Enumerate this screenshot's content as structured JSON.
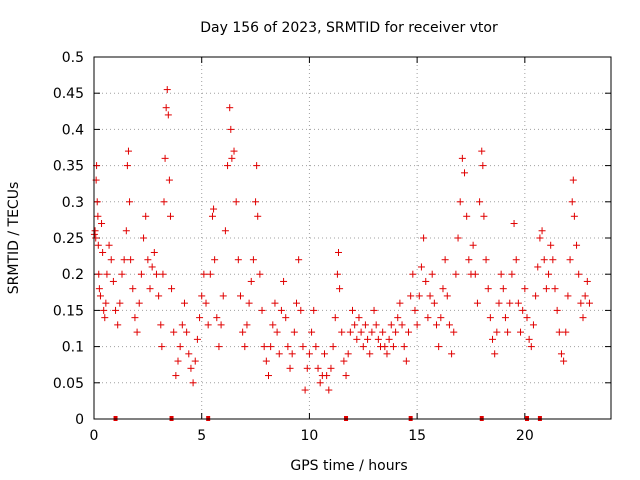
{
  "chart_data": {
    "type": "scatter",
    "title": "Day 156 of 2023, SRMTID for receiver vtor",
    "xlabel": "GPS time / hours",
    "ylabel": "SRMTID / TECUs",
    "xlim": [
      0,
      24
    ],
    "ylim": [
      0,
      0.5
    ],
    "x_ticks": [
      0,
      5,
      10,
      15,
      20
    ],
    "x_tick_labels": [
      "0",
      "5",
      "10",
      "15",
      "20"
    ],
    "y_ticks": [
      0,
      0.05,
      0.1,
      0.15,
      0.2,
      0.25,
      0.3,
      0.35,
      0.4,
      0.45,
      0.5
    ],
    "y_tick_labels": [
      "0",
      "0.05",
      "0.1",
      "0.15",
      "0.2",
      "0.25",
      "0.3",
      "0.35",
      "0.4",
      "0.45",
      "0.5"
    ],
    "grid": true,
    "marker": "+",
    "color": "#e00000",
    "series": [
      {
        "name": "SRMTID",
        "points": [
          [
            0.02,
            0.255
          ],
          [
            0.05,
            0.26
          ],
          [
            0.08,
            0.25
          ],
          [
            0.1,
            0.33
          ],
          [
            0.12,
            0.35
          ],
          [
            0.15,
            0.3
          ],
          [
            0.18,
            0.28
          ],
          [
            0.2,
            0.24
          ],
          [
            0.22,
            0.2
          ],
          [
            0.25,
            0.18
          ],
          [
            0.3,
            0.17
          ],
          [
            0.35,
            0.27
          ],
          [
            0.4,
            0.23
          ],
          [
            0.45,
            0.15
          ],
          [
            0.5,
            0.14
          ],
          [
            0.55,
            0.16
          ],
          [
            0.6,
            0.2
          ],
          [
            0.7,
            0.24
          ],
          [
            0.8,
            0.22
          ],
          [
            0.9,
            0.19
          ],
          [
            1.0,
            0.15
          ],
          [
            1.1,
            0.13
          ],
          [
            1.2,
            0.16
          ],
          [
            1.3,
            0.2
          ],
          [
            1.4,
            0.22
          ],
          [
            1.5,
            0.26
          ],
          [
            1.55,
            0.35
          ],
          [
            1.6,
            0.37
          ],
          [
            1.65,
            0.3
          ],
          [
            1.7,
            0.22
          ],
          [
            1.8,
            0.18
          ],
          [
            1.9,
            0.14
          ],
          [
            2.0,
            0.12
          ],
          [
            2.1,
            0.16
          ],
          [
            2.2,
            0.2
          ],
          [
            2.3,
            0.25
          ],
          [
            2.4,
            0.28
          ],
          [
            2.5,
            0.22
          ],
          [
            2.6,
            0.18
          ],
          [
            2.7,
            0.21
          ],
          [
            2.8,
            0.23
          ],
          [
            2.9,
            0.2
          ],
          [
            3.0,
            0.17
          ],
          [
            3.1,
            0.13
          ],
          [
            3.15,
            0.1
          ],
          [
            3.2,
            0.2
          ],
          [
            3.25,
            0.3
          ],
          [
            3.3,
            0.36
          ],
          [
            3.35,
            0.43
          ],
          [
            3.4,
            0.455
          ],
          [
            3.45,
            0.42
          ],
          [
            3.5,
            0.33
          ],
          [
            3.55,
            0.28
          ],
          [
            3.6,
            0.18
          ],
          [
            3.7,
            0.12
          ],
          [
            3.8,
            0.06
          ],
          [
            3.9,
            0.08
          ],
          [
            4.0,
            0.1
          ],
          [
            4.1,
            0.13
          ],
          [
            4.2,
            0.16
          ],
          [
            4.3,
            0.12
          ],
          [
            4.4,
            0.09
          ],
          [
            4.5,
            0.07
          ],
          [
            4.6,
            0.05
          ],
          [
            4.7,
            0.08
          ],
          [
            4.8,
            0.11
          ],
          [
            4.9,
            0.14
          ],
          [
            5.0,
            0.17
          ],
          [
            5.1,
            0.2
          ],
          [
            5.2,
            0.16
          ],
          [
            5.3,
            0.13
          ],
          [
            5.4,
            0.2
          ],
          [
            5.5,
            0.28
          ],
          [
            5.55,
            0.29
          ],
          [
            5.6,
            0.22
          ],
          [
            5.7,
            0.14
          ],
          [
            5.8,
            0.1
          ],
          [
            5.9,
            0.13
          ],
          [
            6.0,
            0.17
          ],
          [
            6.1,
            0.26
          ],
          [
            6.2,
            0.35
          ],
          [
            6.3,
            0.43
          ],
          [
            6.35,
            0.4
          ],
          [
            6.4,
            0.36
          ],
          [
            6.5,
            0.37
          ],
          [
            6.6,
            0.3
          ],
          [
            6.7,
            0.22
          ],
          [
            6.8,
            0.17
          ],
          [
            6.9,
            0.12
          ],
          [
            7.0,
            0.1
          ],
          [
            7.1,
            0.13
          ],
          [
            7.2,
            0.16
          ],
          [
            7.3,
            0.19
          ],
          [
            7.4,
            0.22
          ],
          [
            7.5,
            0.3
          ],
          [
            7.55,
            0.35
          ],
          [
            7.6,
            0.28
          ],
          [
            7.7,
            0.2
          ],
          [
            7.8,
            0.15
          ],
          [
            7.9,
            0.1
          ],
          [
            8.0,
            0.08
          ],
          [
            8.1,
            0.06
          ],
          [
            8.2,
            0.1
          ],
          [
            8.3,
            0.13
          ],
          [
            8.4,
            0.16
          ],
          [
            8.5,
            0.12
          ],
          [
            8.6,
            0.09
          ],
          [
            8.7,
            0.15
          ],
          [
            8.8,
            0.19
          ],
          [
            8.9,
            0.14
          ],
          [
            9.0,
            0.1
          ],
          [
            9.1,
            0.07
          ],
          [
            9.2,
            0.09
          ],
          [
            9.3,
            0.12
          ],
          [
            9.4,
            0.16
          ],
          [
            9.5,
            0.22
          ],
          [
            9.6,
            0.15
          ],
          [
            9.7,
            0.1
          ],
          [
            9.8,
            0.04
          ],
          [
            9.9,
            0.07
          ],
          [
            10.0,
            0.09
          ],
          [
            10.1,
            0.12
          ],
          [
            10.2,
            0.15
          ],
          [
            10.3,
            0.1
          ],
          [
            10.4,
            0.07
          ],
          [
            10.5,
            0.05
          ],
          [
            10.6,
            0.06
          ],
          [
            10.7,
            0.09
          ],
          [
            10.8,
            0.06
          ],
          [
            10.9,
            0.04
          ],
          [
            11.0,
            0.07
          ],
          [
            11.1,
            0.1
          ],
          [
            11.2,
            0.14
          ],
          [
            11.3,
            0.2
          ],
          [
            11.35,
            0.23
          ],
          [
            11.4,
            0.18
          ],
          [
            11.5,
            0.12
          ],
          [
            11.6,
            0.08
          ],
          [
            11.7,
            0.06
          ],
          [
            11.8,
            0.09
          ],
          [
            11.9,
            0.12
          ],
          [
            12.0,
            0.15
          ],
          [
            12.1,
            0.13
          ],
          [
            12.2,
            0.11
          ],
          [
            12.3,
            0.14
          ],
          [
            12.4,
            0.12
          ],
          [
            12.5,
            0.1
          ],
          [
            12.6,
            0.13
          ],
          [
            12.7,
            0.11
          ],
          [
            12.8,
            0.09
          ],
          [
            12.9,
            0.12
          ],
          [
            13.0,
            0.15
          ],
          [
            13.1,
            0.13
          ],
          [
            13.2,
            0.11
          ],
          [
            13.3,
            0.1
          ],
          [
            13.4,
            0.12
          ],
          [
            13.5,
            0.1
          ],
          [
            13.6,
            0.09
          ],
          [
            13.7,
            0.11
          ],
          [
            13.8,
            0.13
          ],
          [
            13.9,
            0.1
          ],
          [
            14.0,
            0.12
          ],
          [
            14.1,
            0.14
          ],
          [
            14.2,
            0.16
          ],
          [
            14.3,
            0.13
          ],
          [
            14.4,
            0.1
          ],
          [
            14.5,
            0.08
          ],
          [
            14.6,
            0.12
          ],
          [
            14.7,
            0.17
          ],
          [
            14.8,
            0.2
          ],
          [
            14.9,
            0.15
          ],
          [
            15.0,
            0.13
          ],
          [
            15.1,
            0.17
          ],
          [
            15.2,
            0.21
          ],
          [
            15.3,
            0.25
          ],
          [
            15.4,
            0.19
          ],
          [
            15.5,
            0.14
          ],
          [
            15.6,
            0.17
          ],
          [
            15.7,
            0.2
          ],
          [
            15.8,
            0.16
          ],
          [
            15.9,
            0.13
          ],
          [
            16.0,
            0.1
          ],
          [
            16.1,
            0.14
          ],
          [
            16.2,
            0.18
          ],
          [
            16.3,
            0.22
          ],
          [
            16.4,
            0.17
          ],
          [
            16.5,
            0.13
          ],
          [
            16.6,
            0.09
          ],
          [
            16.7,
            0.12
          ],
          [
            16.8,
            0.2
          ],
          [
            16.9,
            0.25
          ],
          [
            17.0,
            0.3
          ],
          [
            17.1,
            0.36
          ],
          [
            17.2,
            0.34
          ],
          [
            17.3,
            0.28
          ],
          [
            17.4,
            0.22
          ],
          [
            17.5,
            0.2
          ],
          [
            17.6,
            0.24
          ],
          [
            17.7,
            0.2
          ],
          [
            17.8,
            0.16
          ],
          [
            17.9,
            0.3
          ],
          [
            18.0,
            0.37
          ],
          [
            18.05,
            0.35
          ],
          [
            18.1,
            0.28
          ],
          [
            18.2,
            0.22
          ],
          [
            18.3,
            0.18
          ],
          [
            18.4,
            0.14
          ],
          [
            18.5,
            0.11
          ],
          [
            18.6,
            0.09
          ],
          [
            18.7,
            0.12
          ],
          [
            18.8,
            0.16
          ],
          [
            18.9,
            0.2
          ],
          [
            19.0,
            0.18
          ],
          [
            19.1,
            0.14
          ],
          [
            19.2,
            0.12
          ],
          [
            19.3,
            0.16
          ],
          [
            19.4,
            0.2
          ],
          [
            19.5,
            0.27
          ],
          [
            19.6,
            0.22
          ],
          [
            19.7,
            0.16
          ],
          [
            19.8,
            0.12
          ],
          [
            19.9,
            0.15
          ],
          [
            20.0,
            0.18
          ],
          [
            20.1,
            0.14
          ],
          [
            20.2,
            0.11
          ],
          [
            20.3,
            0.1
          ],
          [
            20.4,
            0.13
          ],
          [
            20.5,
            0.17
          ],
          [
            20.6,
            0.21
          ],
          [
            20.7,
            0.25
          ],
          [
            20.8,
            0.26
          ],
          [
            20.9,
            0.22
          ],
          [
            21.0,
            0.18
          ],
          [
            21.1,
            0.2
          ],
          [
            21.2,
            0.24
          ],
          [
            21.3,
            0.22
          ],
          [
            21.4,
            0.18
          ],
          [
            21.5,
            0.15
          ],
          [
            21.6,
            0.12
          ],
          [
            21.7,
            0.09
          ],
          [
            21.8,
            0.08
          ],
          [
            21.9,
            0.12
          ],
          [
            22.0,
            0.17
          ],
          [
            22.1,
            0.22
          ],
          [
            22.2,
            0.3
          ],
          [
            22.25,
            0.33
          ],
          [
            22.3,
            0.28
          ],
          [
            22.4,
            0.24
          ],
          [
            22.5,
            0.2
          ],
          [
            22.6,
            0.16
          ],
          [
            22.7,
            0.14
          ],
          [
            22.8,
            0.17
          ],
          [
            22.9,
            0.19
          ],
          [
            23.0,
            0.16
          ]
        ],
        "zero_points": [
          1.0,
          3.6,
          5.3,
          11.7,
          14.7,
          18.0,
          20.1,
          20.7
        ]
      }
    ]
  }
}
